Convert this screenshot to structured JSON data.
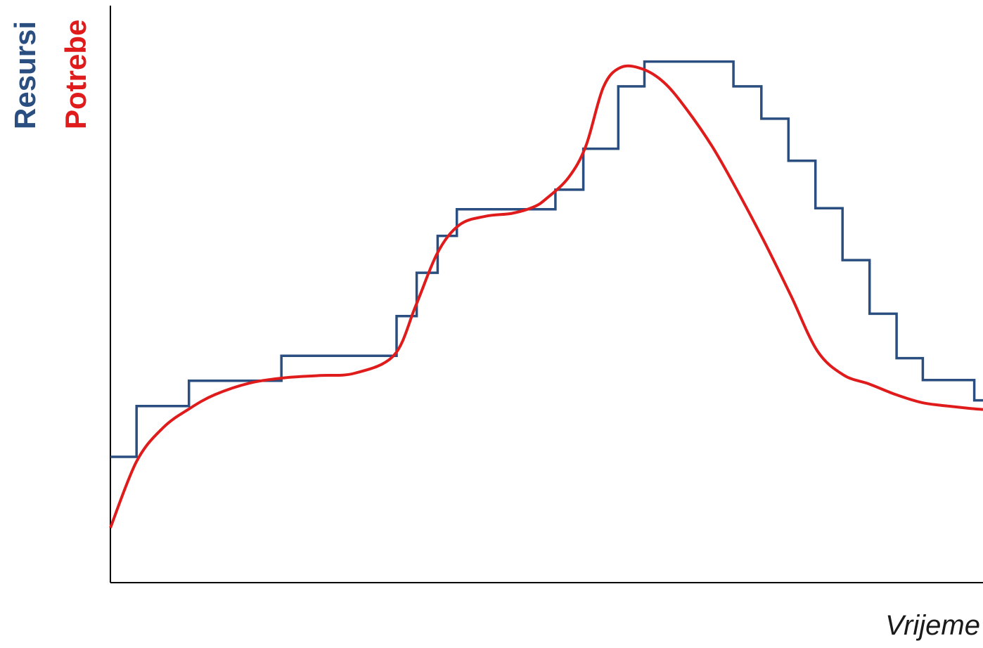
{
  "chart_data": {
    "type": "line",
    "title": "",
    "xlabel": "Vrijeme",
    "ylabels": [
      "Resursi",
      "Potrebe"
    ],
    "xlim": [
      0,
      100
    ],
    "ylim": [
      0,
      100
    ],
    "grid": false,
    "legend": "none",
    "series": [
      {
        "name": "Resursi",
        "color": "#2a4e7f",
        "shape": "step",
        "x": [
          0,
          3,
          3,
          9,
          9,
          19.6,
          19.6,
          32.8,
          32.8,
          35.1,
          35.1,
          37.5,
          37.5,
          39.7,
          39.7,
          51,
          51,
          54.2,
          54.2,
          58.2,
          58.2,
          61.2,
          61.2,
          71.4,
          71.4,
          74.6,
          74.6,
          77.7,
          77.7,
          80.8,
          80.8,
          83.9,
          83.9,
          87,
          87,
          90.1,
          90.1,
          93.1,
          93.1,
          99,
          99,
          100
        ],
        "values": [
          21.8,
          21.8,
          30.6,
          30.6,
          35,
          35,
          39.3,
          39.3,
          46.2,
          46.2,
          53.7,
          53.7,
          60.1,
          60.1,
          64.7,
          64.7,
          68.1,
          68.1,
          75.2,
          75.2,
          86,
          86,
          90.3,
          90.3,
          86,
          86,
          80.4,
          80.4,
          73.1,
          73.1,
          64.9,
          64.9,
          55.9,
          55.9,
          46.6,
          46.6,
          38.9,
          38.9,
          35.1,
          35.1,
          31.6,
          31.6
        ]
      },
      {
        "name": "Potrebe",
        "color": "#e01b1b",
        "shape": "smooth",
        "x": [
          0,
          3,
          6,
          9,
          12,
          16,
          20,
          24,
          28,
          32.5,
          35,
          37.5,
          40,
          43,
          46,
          48.5,
          50,
          52.5,
          54.5,
          56.5,
          58.5,
          61,
          63.5,
          66,
          69,
          72,
          75,
          78,
          81,
          84,
          87,
          90,
          93,
          96,
          98.5,
          100
        ],
        "values": [
          9.5,
          21,
          26.8,
          30.1,
          32.6,
          34.6,
          35.5,
          35.9,
          36.3,
          39.4,
          48,
          57.2,
          62,
          63.5,
          64,
          65.1,
          66.6,
          70.2,
          75.7,
          85.9,
          89.3,
          89,
          86.6,
          82.1,
          75.5,
          67.5,
          58.9,
          49.7,
          40.2,
          36,
          34.4,
          32.6,
          31.2,
          30.6,
          30.2,
          30
        ]
      }
    ]
  }
}
